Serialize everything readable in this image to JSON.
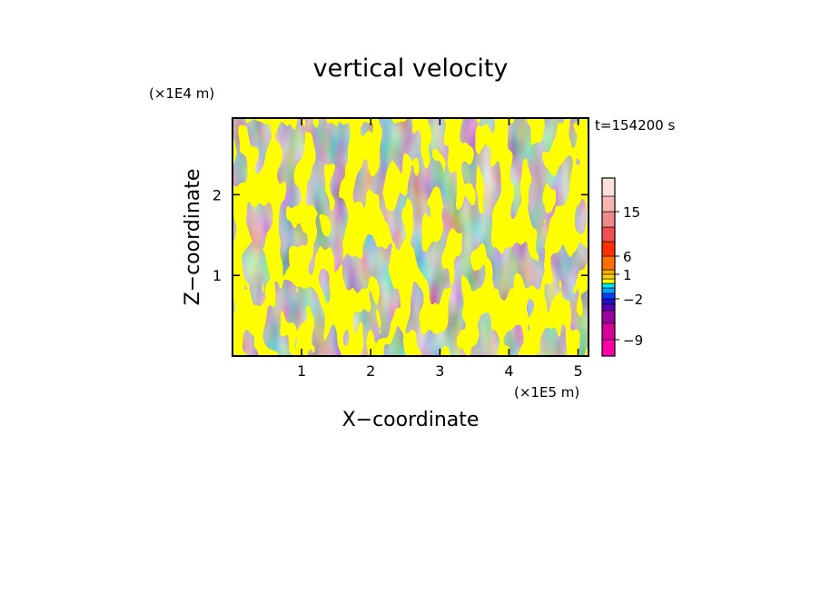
{
  "chart_data": {
    "type": "heatmap",
    "title": "vertical velocity",
    "xlabel": "X−coordinate",
    "ylabel": "Z−coordinate",
    "x_multiplier": "(×1E5 m)",
    "y_multiplier": "(×1E4 m)",
    "time_label": "t=154200 s",
    "xlim": [
      0,
      5.15
    ],
    "ylim": [
      0,
      2.95
    ],
    "x_ticks": [
      1,
      2,
      3,
      4,
      5
    ],
    "y_ticks": [
      1,
      2
    ],
    "x_tick_labels": [
      "1",
      "2",
      "3",
      "4",
      "5"
    ],
    "y_tick_labels": [
      "1",
      "2"
    ],
    "field_colors": {
      "positive": "#ffff00",
      "negative": "#00e5ee"
    },
    "colorbar": {
      "labels": [
        "15",
        "6",
        "1",
        "−2",
        "−9"
      ],
      "label_levels": [
        15,
        6,
        1,
        -2,
        -9
      ],
      "bands": [
        {
          "level": -12,
          "color": "#ff00a8"
        },
        {
          "level": -9,
          "color": "#d4009c"
        },
        {
          "level": -6,
          "color": "#9a00a0"
        },
        {
          "level": -4,
          "color": "#5a00b4"
        },
        {
          "level": -3,
          "color": "#2010c8"
        },
        {
          "level": -2,
          "color": "#0040ff"
        },
        {
          "level": -1,
          "color": "#00a0ff"
        },
        {
          "level": -0.5,
          "color": "#00e5ee"
        },
        {
          "level": 0,
          "color": "#ffff00"
        },
        {
          "level": 0.5,
          "color": "#ffd400"
        },
        {
          "level": 1,
          "color": "#ffaa00"
        },
        {
          "level": 3,
          "color": "#ff7000"
        },
        {
          "level": 6,
          "color": "#ff3000"
        },
        {
          "level": 9,
          "color": "#f05050"
        },
        {
          "level": 12,
          "color": "#f08a8a"
        },
        {
          "level": 15,
          "color": "#f8b6b0"
        },
        {
          "level": 18,
          "color": "#fde0dc"
        }
      ]
    },
    "grid": false
  }
}
